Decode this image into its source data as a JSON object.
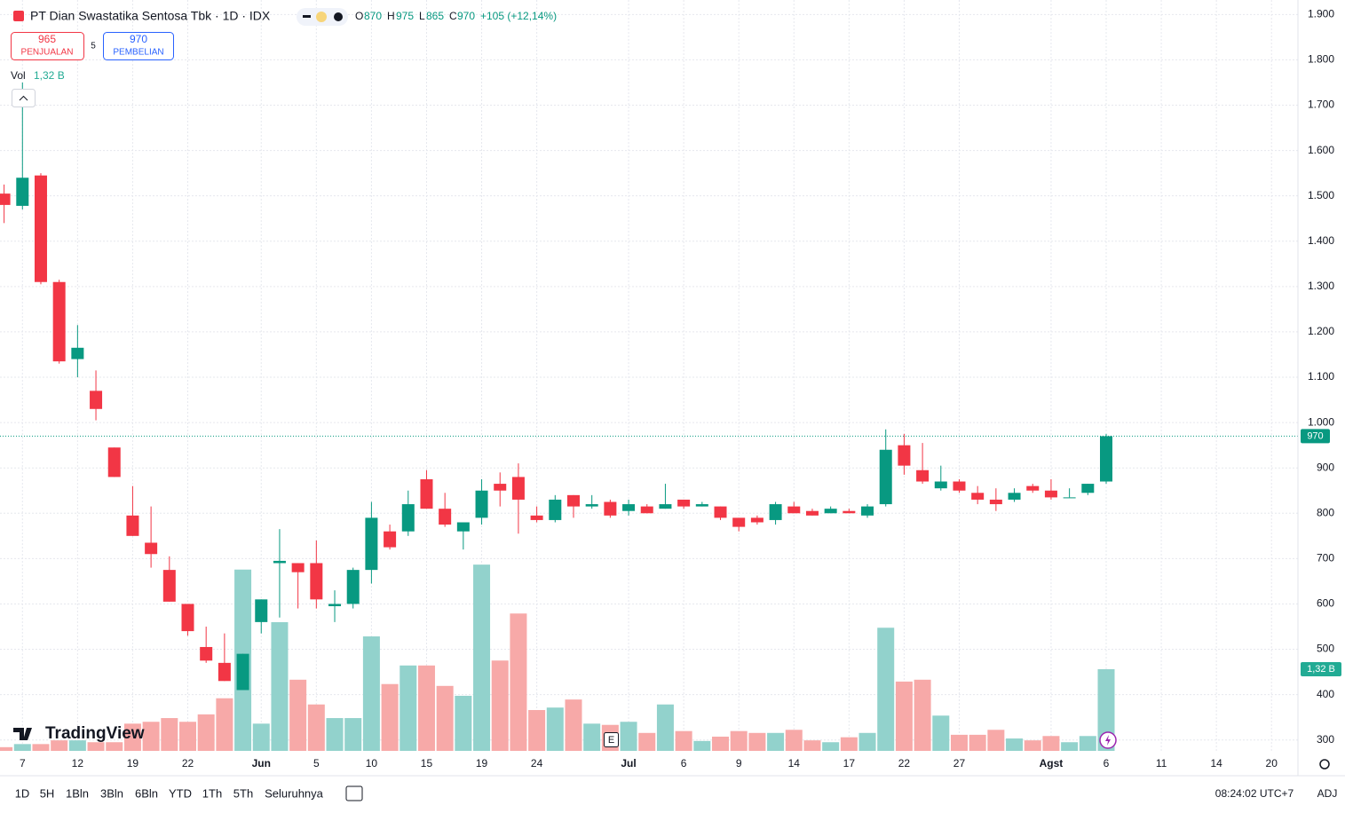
{
  "header": {
    "title": "PT Dian Swastatika Sentosa Tbk · 1D · IDX",
    "labels": {
      "o": "O",
      "h": "H",
      "l": "L",
      "c": "C"
    },
    "change": "+105 (+12,14%)",
    "sell": {
      "price": "965",
      "label": "PENJUALAN"
    },
    "spread": "5",
    "buy": {
      "price": "970",
      "label": "PEMBELIAN"
    },
    "volume_label": "Vol"
  },
  "chart_data": {
    "type": "candlestick",
    "title": "PT Dian Swastatika Sentosa Tbk · 1D · IDX",
    "categories": [
      null,
      "7",
      null,
      null,
      "12",
      null,
      null,
      "19",
      null,
      null,
      "22",
      null,
      null,
      null,
      "Jun",
      null,
      null,
      "5",
      null,
      null,
      "10",
      null,
      null,
      "15",
      null,
      null,
      "19",
      null,
      null,
      "24",
      null,
      null,
      null,
      null,
      "Jul",
      null,
      null,
      "6",
      null,
      null,
      "9",
      null,
      null,
      "14",
      null,
      null,
      "17",
      null,
      null,
      "22",
      null,
      null,
      "27",
      null,
      null,
      null,
      null,
      "Agst",
      null,
      null,
      "6",
      null,
      null,
      "11",
      null,
      null,
      "14",
      null,
      null,
      "20"
    ],
    "open": [
      1505,
      1478,
      1545,
      1310,
      1140,
      1070,
      945,
      795,
      735,
      675,
      600,
      505,
      470,
      410,
      560,
      690,
      690,
      690,
      595,
      600,
      675,
      760,
      760,
      875,
      810,
      760,
      790,
      865,
      880,
      795,
      785,
      840,
      815,
      825,
      805,
      815,
      810,
      830,
      815,
      815,
      790,
      790,
      785,
      815,
      805,
      800,
      805,
      795,
      820,
      950,
      895,
      855,
      870,
      845,
      830,
      830,
      860,
      850,
      835,
      845,
      870,
      null,
      null,
      null,
      null,
      null,
      null,
      null,
      null,
      null
    ],
    "high": [
      1525,
      1750,
      1550,
      1315,
      1215,
      1115,
      945,
      860,
      815,
      705,
      600,
      550,
      535,
      490,
      610,
      765,
      690,
      740,
      630,
      680,
      825,
      775,
      850,
      895,
      845,
      780,
      875,
      890,
      910,
      815,
      840,
      840,
      840,
      830,
      830,
      820,
      865,
      830,
      825,
      815,
      790,
      795,
      825,
      825,
      810,
      815,
      810,
      820,
      985,
      975,
      955,
      905,
      875,
      860,
      855,
      855,
      865,
      875,
      855,
      865,
      975,
      null,
      null,
      null,
      null,
      null,
      null,
      null,
      null,
      null
    ],
    "low": [
      1440,
      1470,
      1305,
      1130,
      1100,
      1005,
      880,
      750,
      680,
      605,
      530,
      470,
      430,
      410,
      535,
      570,
      590,
      590,
      560,
      590,
      645,
      720,
      750,
      810,
      770,
      720,
      775,
      815,
      755,
      780,
      780,
      790,
      810,
      790,
      795,
      800,
      810,
      810,
      815,
      785,
      760,
      775,
      775,
      800,
      795,
      800,
      800,
      790,
      815,
      885,
      865,
      850,
      845,
      820,
      805,
      825,
      845,
      830,
      835,
      840,
      865,
      null,
      null,
      null,
      null,
      null,
      null,
      null,
      null,
      null
    ],
    "close": [
      1480,
      1540,
      1310,
      1135,
      1165,
      1030,
      880,
      750,
      710,
      605,
      540,
      475,
      430,
      490,
      610,
      695,
      670,
      610,
      600,
      675,
      790,
      725,
      820,
      810,
      775,
      780,
      850,
      850,
      830,
      785,
      830,
      815,
      820,
      795,
      820,
      800,
      820,
      815,
      820,
      790,
      770,
      780,
      820,
      800,
      795,
      810,
      800,
      815,
      940,
      905,
      870,
      870,
      850,
      830,
      820,
      845,
      850,
      835,
      835,
      865,
      970,
      null,
      null,
      null,
      null,
      null,
      null,
      null,
      null,
      null
    ],
    "volume": {
      "values": [
        60000000,
        110000000,
        110000000,
        170000000,
        170000000,
        140000000,
        140000000,
        440000000,
        470000000,
        530000000,
        470000000,
        590000000,
        850000000,
        2930000000,
        440000000,
        2080000000,
        1150000000,
        750000000,
        530000000,
        530000000,
        1850000000,
        1080000000,
        1380000000,
        1380000000,
        1050000000,
        890000000,
        3010000000,
        1460000000,
        2220000000,
        660000000,
        700000000,
        830000000,
        440000000,
        420000000,
        470000000,
        290000000,
        750000000,
        320000000,
        160000000,
        230000000,
        320000000,
        290000000,
        290000000,
        340000000,
        170000000,
        140000000,
        220000000,
        290000000,
        1990000000,
        1120000000,
        1150000000,
        570000000,
        260000000,
        260000000,
        340000000,
        200000000,
        170000000,
        240000000,
        140000000,
        240000000,
        1320000000,
        null,
        null,
        null,
        null,
        null,
        null,
        null,
        null,
        null
      ],
      "value_labels": [
        null,
        null,
        null,
        null,
        null,
        null,
        null,
        null,
        null,
        null,
        null,
        null,
        null,
        null,
        null,
        null,
        null,
        null,
        null,
        null,
        null,
        null,
        null,
        null,
        null,
        null,
        null,
        null,
        null,
        null,
        null,
        null,
        null,
        null,
        null,
        null,
        null,
        null,
        null,
        null,
        null,
        null,
        null,
        null,
        null,
        null,
        null,
        null,
        null,
        null,
        null,
        null,
        null,
        null,
        null,
        null,
        null,
        null,
        null,
        null,
        "1,32 B",
        null,
        null,
        null,
        null,
        null,
        null,
        null,
        null,
        null
      ],
      "ylim": [
        0,
        3500000000
      ],
      "up_color": "#92d2cc",
      "down_color": "#f7a9a8"
    },
    "ylim": [
      272,
      1932
    ],
    "yticks": [
      {
        "value": 1900,
        "label": "1.900"
      },
      {
        "value": 1800,
        "label": "1.800"
      },
      {
        "value": 1700,
        "label": "1.700"
      },
      {
        "value": 1600,
        "label": "1.600"
      },
      {
        "value": 1500,
        "label": "1.500"
      },
      {
        "value": 1400,
        "label": "1.400"
      },
      {
        "value": 1300,
        "label": "1.300"
      },
      {
        "value": 1200,
        "label": "1.200"
      },
      {
        "value": 1100,
        "label": "1.100"
      },
      {
        "value": 1000,
        "label": "1.000"
      },
      900,
      800,
      700,
      600,
      500,
      400,
      300
    ],
    "up_color": "#089981",
    "down_color": "#f23645",
    "grid": true
  },
  "logo": "TradingView",
  "earnings_marker": "E",
  "toolbar": {
    "ranges": [
      "1D",
      "5H",
      "1Bln",
      "3Bln",
      "6Bln",
      "YTD",
      "1Th",
      "5Th",
      "Seluruhnya"
    ],
    "time": "08:24:02 UTC+7",
    "adj": "ADJ"
  }
}
